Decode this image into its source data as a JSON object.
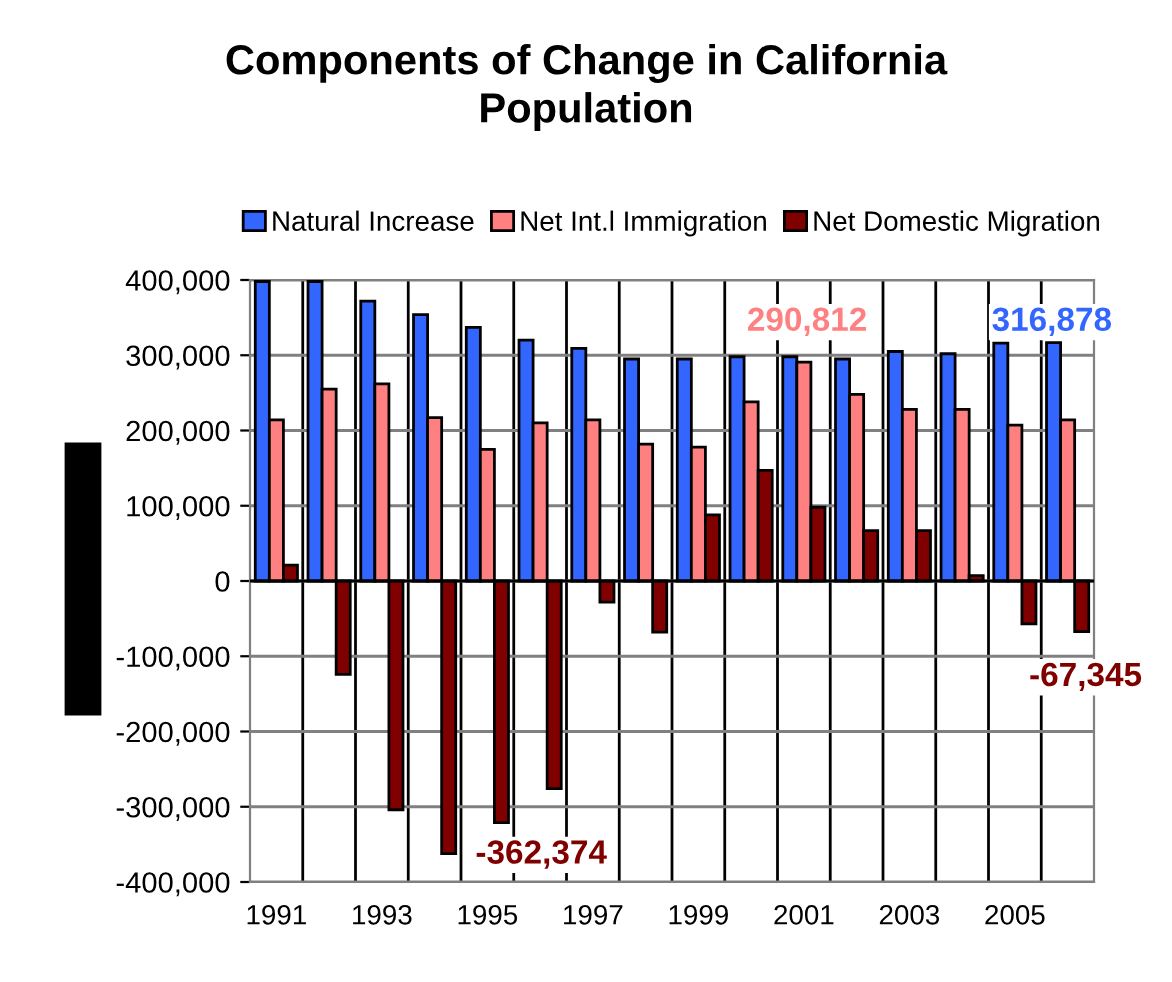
{
  "chart_data": {
    "type": "bar",
    "title": "Components of Change in California\nPopulation",
    "categories": [
      "1991",
      null,
      "1993",
      null,
      "1995",
      null,
      "1997",
      null,
      "1999",
      null,
      "2001",
      null,
      "2003",
      null,
      "2005",
      null
    ],
    "series": [
      {
        "name": "Natural Increase",
        "color": "#3366ff",
        "values": [
          398000,
          398000,
          372000,
          354000,
          337000,
          320000,
          309000,
          295000,
          295000,
          298000,
          298000,
          295000,
          305000,
          302000,
          316000,
          316878
        ]
      },
      {
        "name": "Net Int.l Immigration",
        "color": "#ff8080",
        "values": [
          214000,
          255000,
          262000,
          217000,
          175000,
          210000,
          214000,
          182000,
          178000,
          238000,
          290812,
          248000,
          228000,
          228000,
          207000,
          214000
        ]
      },
      {
        "name": "Net Domestic Migration",
        "color": "#800000",
        "values": [
          21000,
          -124000,
          -304000,
          -362374,
          -321000,
          -276000,
          -28000,
          -68000,
          88000,
          147000,
          98000,
          67000,
          67000,
          7000,
          -57000,
          -67345
        ]
      }
    ],
    "ylim": [
      -400000,
      400000
    ],
    "yticks": [
      {
        "value": -400000,
        "label": "-400,000"
      },
      {
        "value": -300000,
        "label": "-300,000"
      },
      {
        "value": -200000,
        "label": "-200,000"
      },
      {
        "value": -100000,
        "label": "-100,000"
      },
      0,
      {
        "value": 100000,
        "label": "100,000"
      },
      {
        "value": 200000,
        "label": "200,000"
      },
      {
        "value": 300000,
        "label": "300,000"
      },
      {
        "value": 400000,
        "label": "400,000"
      }
    ],
    "grid": true,
    "legend": "top",
    "annotations": [
      "-362,374",
      "290,812",
      "316,878",
      "-67,345"
    ]
  }
}
